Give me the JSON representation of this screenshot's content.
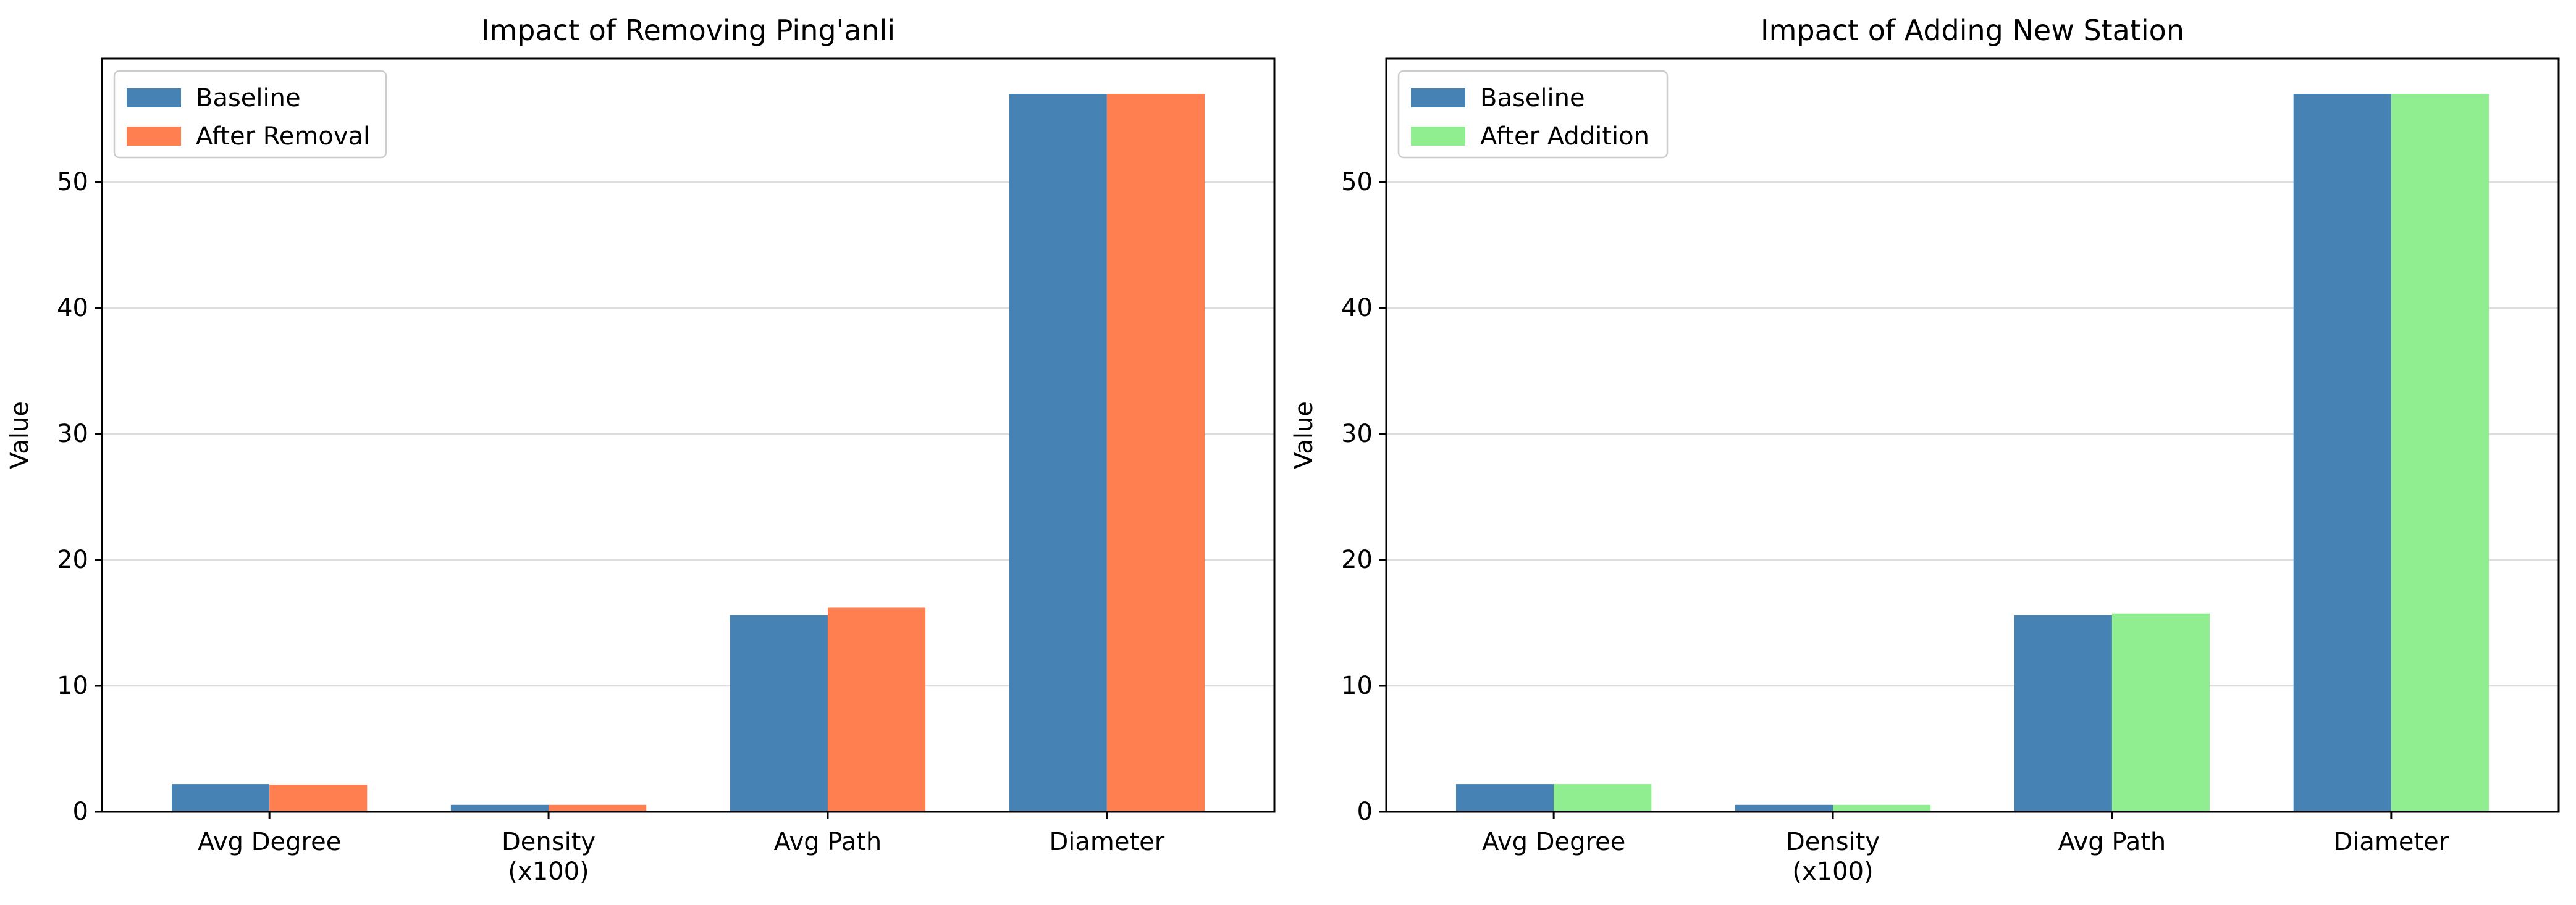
{
  "chart_data": [
    {
      "type": "bar",
      "title": "Impact of Removing Ping'anli",
      "xlabel": "",
      "ylabel": "Value",
      "categories": [
        "Avg Degree",
        "Density\n(x100)",
        "Avg Path",
        "Diameter"
      ],
      "series": [
        {
          "name": "Baseline",
          "color": "#4682b4",
          "values": [
            2.2,
            0.55,
            15.6,
            57
          ]
        },
        {
          "name": "After Removal",
          "color": "#ff7f50",
          "values": [
            2.15,
            0.55,
            16.2,
            57
          ]
        }
      ],
      "ylim": [
        0,
        59.8
      ],
      "yticks": [
        0,
        10,
        20,
        30,
        40,
        50
      ],
      "grid": "y",
      "legend": "upper-left"
    },
    {
      "type": "bar",
      "title": "Impact of Adding New Station",
      "xlabel": "",
      "ylabel": "Value",
      "categories": [
        "Avg Degree",
        "Density\n(x100)",
        "Avg Path",
        "Diameter"
      ],
      "series": [
        {
          "name": "Baseline",
          "color": "#4682b4",
          "values": [
            2.2,
            0.55,
            15.6,
            57
          ]
        },
        {
          "name": "After Addition",
          "color": "#90ee90",
          "values": [
            2.2,
            0.55,
            15.75,
            57
          ]
        }
      ],
      "ylim": [
        0,
        59.8
      ],
      "yticks": [
        0,
        10,
        20,
        30,
        40,
        50
      ],
      "grid": "y",
      "legend": "upper-left"
    }
  ]
}
